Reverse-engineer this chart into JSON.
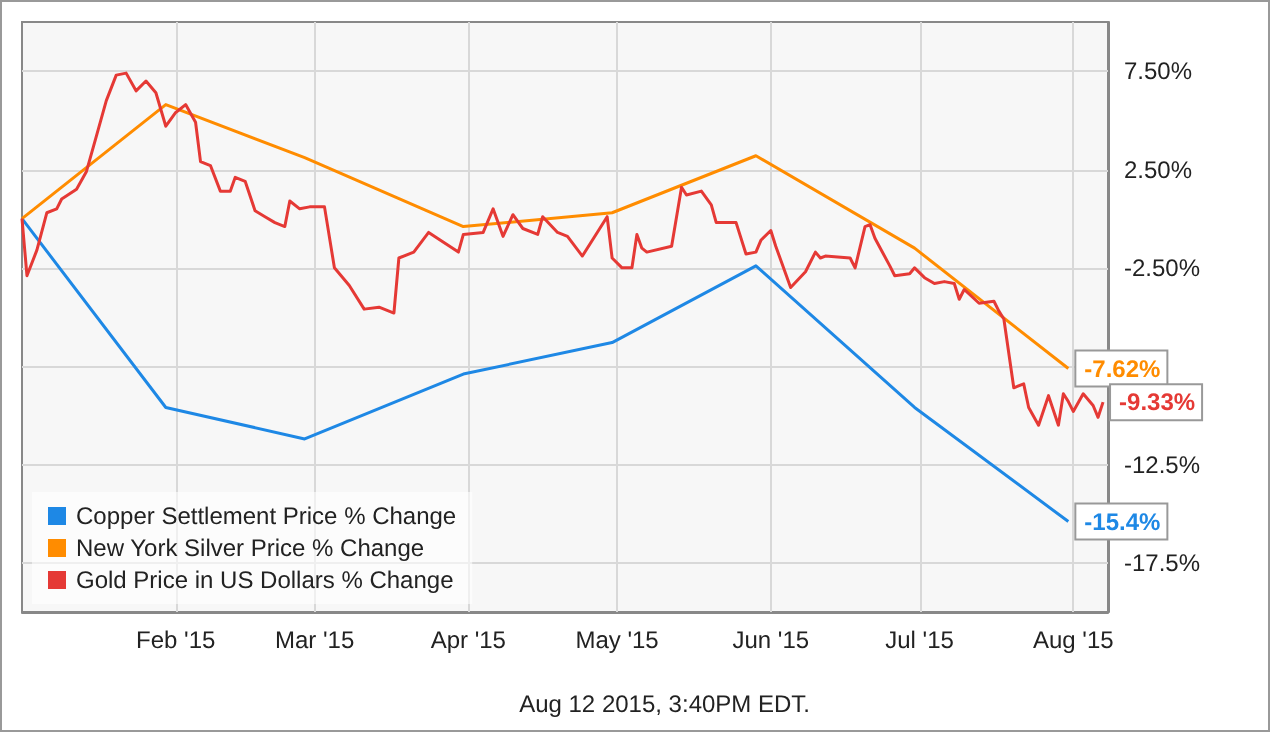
{
  "chart_data": {
    "type": "line",
    "xlim": [
      "2015-01-01",
      "2015-08-08"
    ],
    "xticks": [
      {
        "value": "2015-02-01",
        "label": "Feb '15"
      },
      {
        "value": "2015-03-01",
        "label": "Mar '15"
      },
      {
        "value": "2015-04-01",
        "label": "Apr '15"
      },
      {
        "value": "2015-05-01",
        "label": "May '15"
      },
      {
        "value": "2015-06-01",
        "label": "Jun '15"
      },
      {
        "value": "2015-07-01",
        "label": "Jul '15"
      },
      {
        "value": "2015-08-01",
        "label": "Aug '15"
      }
    ],
    "ylim": [
      -20,
      10
    ],
    "yticks": [
      {
        "value": 7.5,
        "label": "7.50%"
      },
      {
        "value": 2.5,
        "label": "2.50%"
      },
      {
        "value": -2.5,
        "label": "-2.50%"
      },
      {
        "value": -7.5,
        "label": null
      },
      {
        "value": -12.5,
        "label": "-12.5%"
      },
      {
        "value": -17.5,
        "label": "-17.5%"
      }
    ],
    "grid": true,
    "legend": "bottom left",
    "marker": "none",
    "annotations": [
      "Aug 12 2015, 3:40PM EDT."
    ],
    "series": [
      {
        "name": "Copper Settlement Price % Change",
        "color": "#1e88e5",
        "x": [
          "2015-01-01",
          "2015-01-30",
          "2015-02-27",
          "2015-03-31",
          "2015-04-30",
          "2015-05-29",
          "2015-06-30",
          "2015-07-31"
        ],
        "values": [
          0,
          -9.6,
          -11.2,
          -7.9,
          -6.3,
          -2.4,
          -9.6,
          -15.4
        ],
        "value_labels": [
          null,
          null,
          null,
          null,
          null,
          null,
          null,
          "-15.4%"
        ]
      },
      {
        "name": "New York Silver Price % Change",
        "color": "#ff8c00",
        "x": [
          "2015-01-01",
          "2015-01-30",
          "2015-02-27",
          "2015-03-31",
          "2015-04-30",
          "2015-05-29",
          "2015-06-30",
          "2015-07-31"
        ],
        "values": [
          0,
          5.8,
          3.1,
          -0.4,
          0.3,
          3.2,
          -1.5,
          -7.62
        ],
        "value_labels": [
          null,
          null,
          null,
          null,
          null,
          null,
          null,
          "-7.62%"
        ]
      },
      {
        "name": "Gold Price in US Dollars % Change",
        "color": "#e53935",
        "x": [
          "2015-01-01",
          "2015-01-02",
          "2015-01-04",
          "2015-01-06",
          "2015-01-08",
          "2015-01-09",
          "2015-01-12",
          "2015-01-14",
          "2015-01-16",
          "2015-01-18",
          "2015-01-20",
          "2015-01-22",
          "2015-01-24",
          "2015-01-26",
          "2015-01-28",
          "2015-01-30",
          "2015-02-01",
          "2015-02-03",
          "2015-02-05",
          "2015-02-06",
          "2015-02-08",
          "2015-02-10",
          "2015-02-12",
          "2015-02-13",
          "2015-02-15",
          "2015-02-17",
          "2015-02-19",
          "2015-02-21",
          "2015-02-23",
          "2015-02-24",
          "2015-02-26",
          "2015-02-28",
          "2015-03-03",
          "2015-03-05",
          "2015-03-08",
          "2015-03-11",
          "2015-03-14",
          "2015-03-17",
          "2015-03-18",
          "2015-03-21",
          "2015-03-24",
          "2015-03-27",
          "2015-03-30",
          "2015-03-31",
          "2015-04-04",
          "2015-04-06",
          "2015-04-08",
          "2015-04-10",
          "2015-04-12",
          "2015-04-15",
          "2015-04-16",
          "2015-04-19",
          "2015-04-21",
          "2015-04-24",
          "2015-04-27",
          "2015-04-29",
          "2015-04-30",
          "2015-05-02",
          "2015-05-04",
          "2015-05-05",
          "2015-05-06",
          "2015-05-07",
          "2015-05-12",
          "2015-05-14",
          "2015-05-15",
          "2015-05-18",
          "2015-05-20",
          "2015-05-21",
          "2015-05-25",
          "2015-05-27",
          "2015-05-29",
          "2015-05-30",
          "2015-06-01",
          "2015-06-02",
          "2015-06-05",
          "2015-06-08",
          "2015-06-10",
          "2015-06-11",
          "2015-06-12",
          "2015-06-17",
          "2015-06-18",
          "2015-06-20",
          "2015-06-21",
          "2015-06-22",
          "2015-06-25",
          "2015-06-26",
          "2015-06-29",
          "2015-06-30",
          "2015-07-02",
          "2015-07-04",
          "2015-07-06",
          "2015-07-08",
          "2015-07-09",
          "2015-07-10",
          "2015-07-13",
          "2015-07-16",
          "2015-07-17",
          "2015-07-18",
          "2015-07-20",
          "2015-07-22",
          "2015-07-23",
          "2015-07-25",
          "2015-07-27",
          "2015-07-29",
          "2015-07-30",
          "2015-07-31",
          "2015-08-01",
          "2015-08-03",
          "2015-08-05",
          "2015-08-06",
          "2015-08-07"
        ],
        "values": [
          0,
          -2.9,
          -1.6,
          0.3,
          0.5,
          1.0,
          1.5,
          2.4,
          4.2,
          6.0,
          7.3,
          7.4,
          6.5,
          7.0,
          6.4,
          4.7,
          5.4,
          5.8,
          4.9,
          2.9,
          2.7,
          1.4,
          1.4,
          2.1,
          1.9,
          0.4,
          0.1,
          -0.2,
          -0.4,
          0.9,
          0.5,
          0.6,
          0.6,
          -2.5,
          -3.4,
          -4.6,
          -4.5,
          -4.8,
          -2.0,
          -1.7,
          -0.7,
          -1.2,
          -1.7,
          -0.8,
          -0.7,
          0.5,
          -0.9,
          0.2,
          -0.5,
          -0.8,
          0.1,
          -0.7,
          -0.9,
          -1.9,
          -0.7,
          0.1,
          -2.0,
          -2.5,
          -2.5,
          -0.8,
          -1.5,
          -1.7,
          -1.4,
          1.6,
          1.2,
          1.4,
          0.7,
          -0.2,
          -0.2,
          -1.8,
          -1.7,
          -1.1,
          -0.6,
          -1.4,
          -3.5,
          -2.7,
          -1.7,
          -2.0,
          -1.9,
          -2.0,
          -2.5,
          -0.4,
          -0.3,
          -1.0,
          -2.4,
          -2.9,
          -2.8,
          -2.5,
          -3.0,
          -3.3,
          -3.2,
          -3.3,
          -4.1,
          -3.6,
          -4.3,
          -4.2,
          -4.7,
          -5.1,
          -8.6,
          -8.4,
          -9.6,
          -10.5,
          -9.0,
          -10.5,
          -8.9,
          -9.3,
          -9.8,
          -8.9,
          -9.5,
          -10.1,
          -9.33
        ],
        "value_labels": [
          null,
          null,
          null,
          null,
          null,
          null,
          null,
          null,
          null,
          null,
          null,
          null,
          null,
          null,
          null,
          null,
          null,
          null,
          null,
          null,
          null,
          null,
          null,
          null,
          null,
          null,
          null,
          null,
          null,
          null,
          null,
          null,
          null,
          null,
          null,
          null,
          null,
          null,
          null,
          null,
          null,
          null,
          null,
          null,
          null,
          null,
          null,
          null,
          null,
          null,
          null,
          null,
          null,
          null,
          null,
          null,
          null,
          null,
          null,
          null,
          null,
          null,
          null,
          null,
          null,
          null,
          null,
          null,
          null,
          null,
          null,
          null,
          null,
          null,
          null,
          null,
          null,
          null,
          null,
          null,
          null,
          null,
          null,
          null,
          null,
          null,
          null,
          null,
          null,
          null,
          null,
          null,
          null,
          null,
          null,
          null,
          null,
          null,
          null,
          null,
          null,
          null,
          null,
          null,
          null,
          null,
          null,
          null,
          null,
          null,
          "-9.33%"
        ]
      }
    ]
  }
}
